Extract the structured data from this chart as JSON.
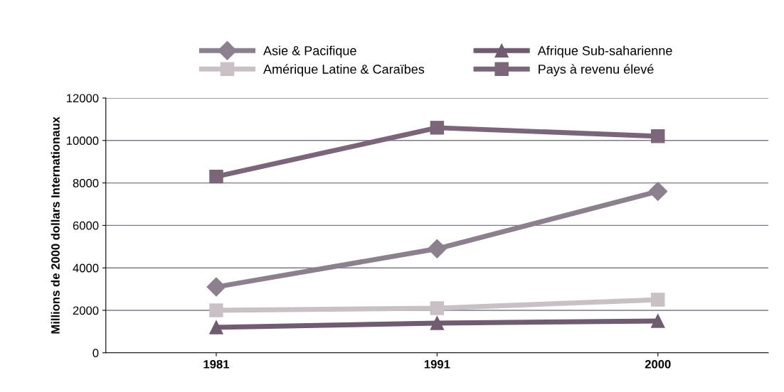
{
  "chart_data": {
    "type": "line",
    "ylabel": "Millions de 2000 dollars Internationaux",
    "categories": [
      "1981",
      "1991",
      "2000"
    ],
    "series": [
      {
        "name": "Asie & Pacifique",
        "color": "#8c7f8e",
        "marker": "diamond",
        "values": [
          3100,
          4900,
          7600
        ]
      },
      {
        "name": "Amérique Latine & Caraïbes",
        "color": "#c9c0c6",
        "marker": "square",
        "values": [
          2000,
          2100,
          2500
        ]
      },
      {
        "name": "Afrique Sub-saharienne",
        "color": "#6f5c70",
        "marker": "triangle",
        "values": [
          1200,
          1400,
          1500
        ]
      },
      {
        "name": "Pays à revenu élevé",
        "color": "#7a6579",
        "marker": "square",
        "values": [
          8300,
          10600,
          10200
        ]
      }
    ],
    "ylim": [
      0,
      12000
    ],
    "yticks": [
      0,
      2000,
      4000,
      6000,
      8000,
      10000,
      12000
    ],
    "grid": "y",
    "legend": "top"
  }
}
